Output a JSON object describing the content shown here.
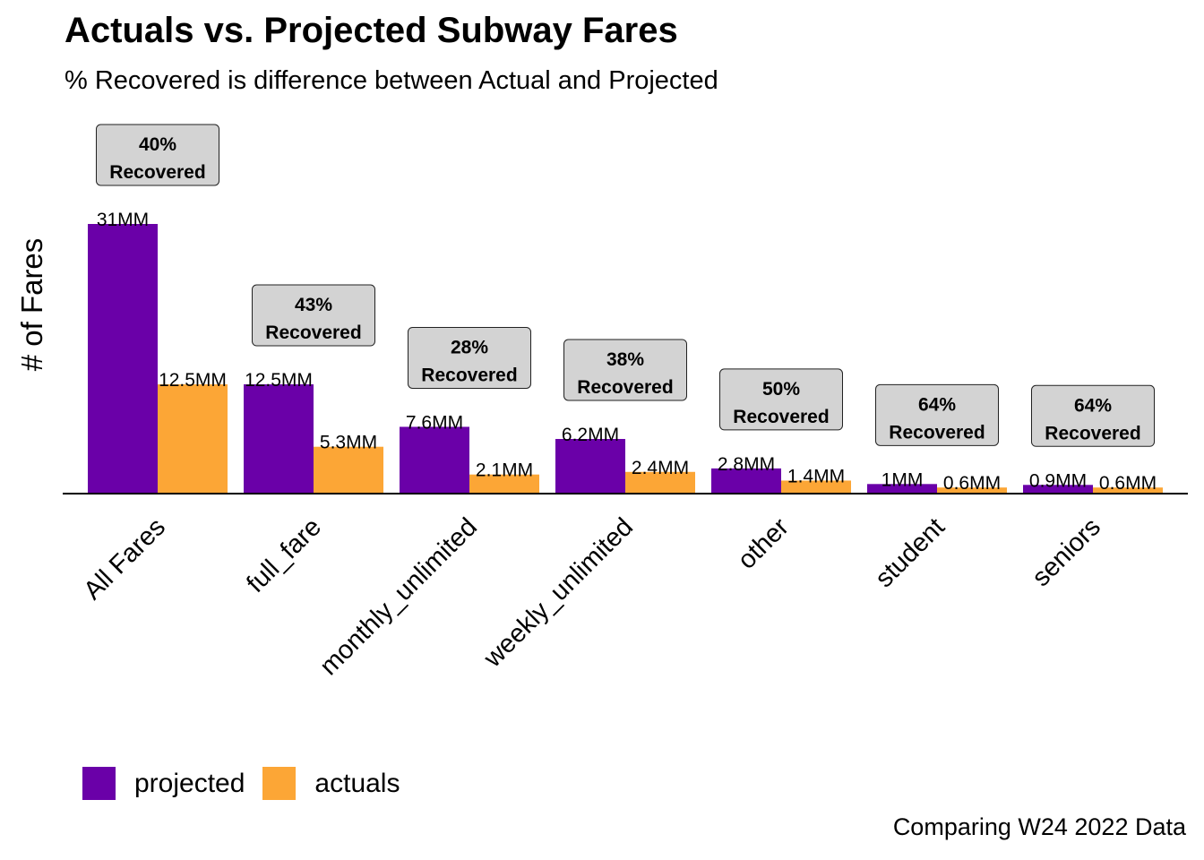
{
  "chart_data": {
    "type": "bar",
    "title": "Actuals vs. Projected Subway Fares",
    "subtitle": "% Recovered is difference between Actual and Projected",
    "caption": "Comparing W24 2022 Data",
    "ylabel": "# of Fares",
    "xlabel": "",
    "ylim": [
      0,
      31
    ],
    "grid": false,
    "legend_position": "bottom-left",
    "categories": [
      "All Fares",
      "full_fare",
      "monthly_unlimited",
      "weekly_unlimited",
      "other",
      "student",
      "seniors"
    ],
    "series": [
      {
        "name": "projected",
        "color": "#6a00a8",
        "values": [
          31,
          12.5,
          7.6,
          6.2,
          2.8,
          1.0,
          0.9
        ],
        "labels": [
          "31MM",
          "12.5MM",
          "7.6MM",
          "6.2MM",
          "2.8MM",
          "1MM",
          "0.9MM"
        ]
      },
      {
        "name": "actuals",
        "color": "#fca636",
        "values": [
          12.5,
          5.3,
          2.1,
          2.4,
          1.4,
          0.6,
          0.6
        ],
        "labels": [
          "12.5MM",
          "5.3MM",
          "2.1MM",
          "2.4MM",
          "1.4MM",
          "0.6MM",
          "0.6MM"
        ]
      }
    ],
    "annotations": [
      {
        "pct": "40%",
        "text": "Recovered"
      },
      {
        "pct": "43%",
        "text": "Recovered"
      },
      {
        "pct": "28%",
        "text": "Recovered"
      },
      {
        "pct": "38%",
        "text": "Recovered"
      },
      {
        "pct": "50%",
        "text": "Recovered"
      },
      {
        "pct": "64%",
        "text": "Recovered"
      },
      {
        "pct": "64%",
        "text": "Recovered"
      }
    ],
    "annotation_style": {
      "fill": "#d3d3d3",
      "stroke": "#222222"
    }
  }
}
